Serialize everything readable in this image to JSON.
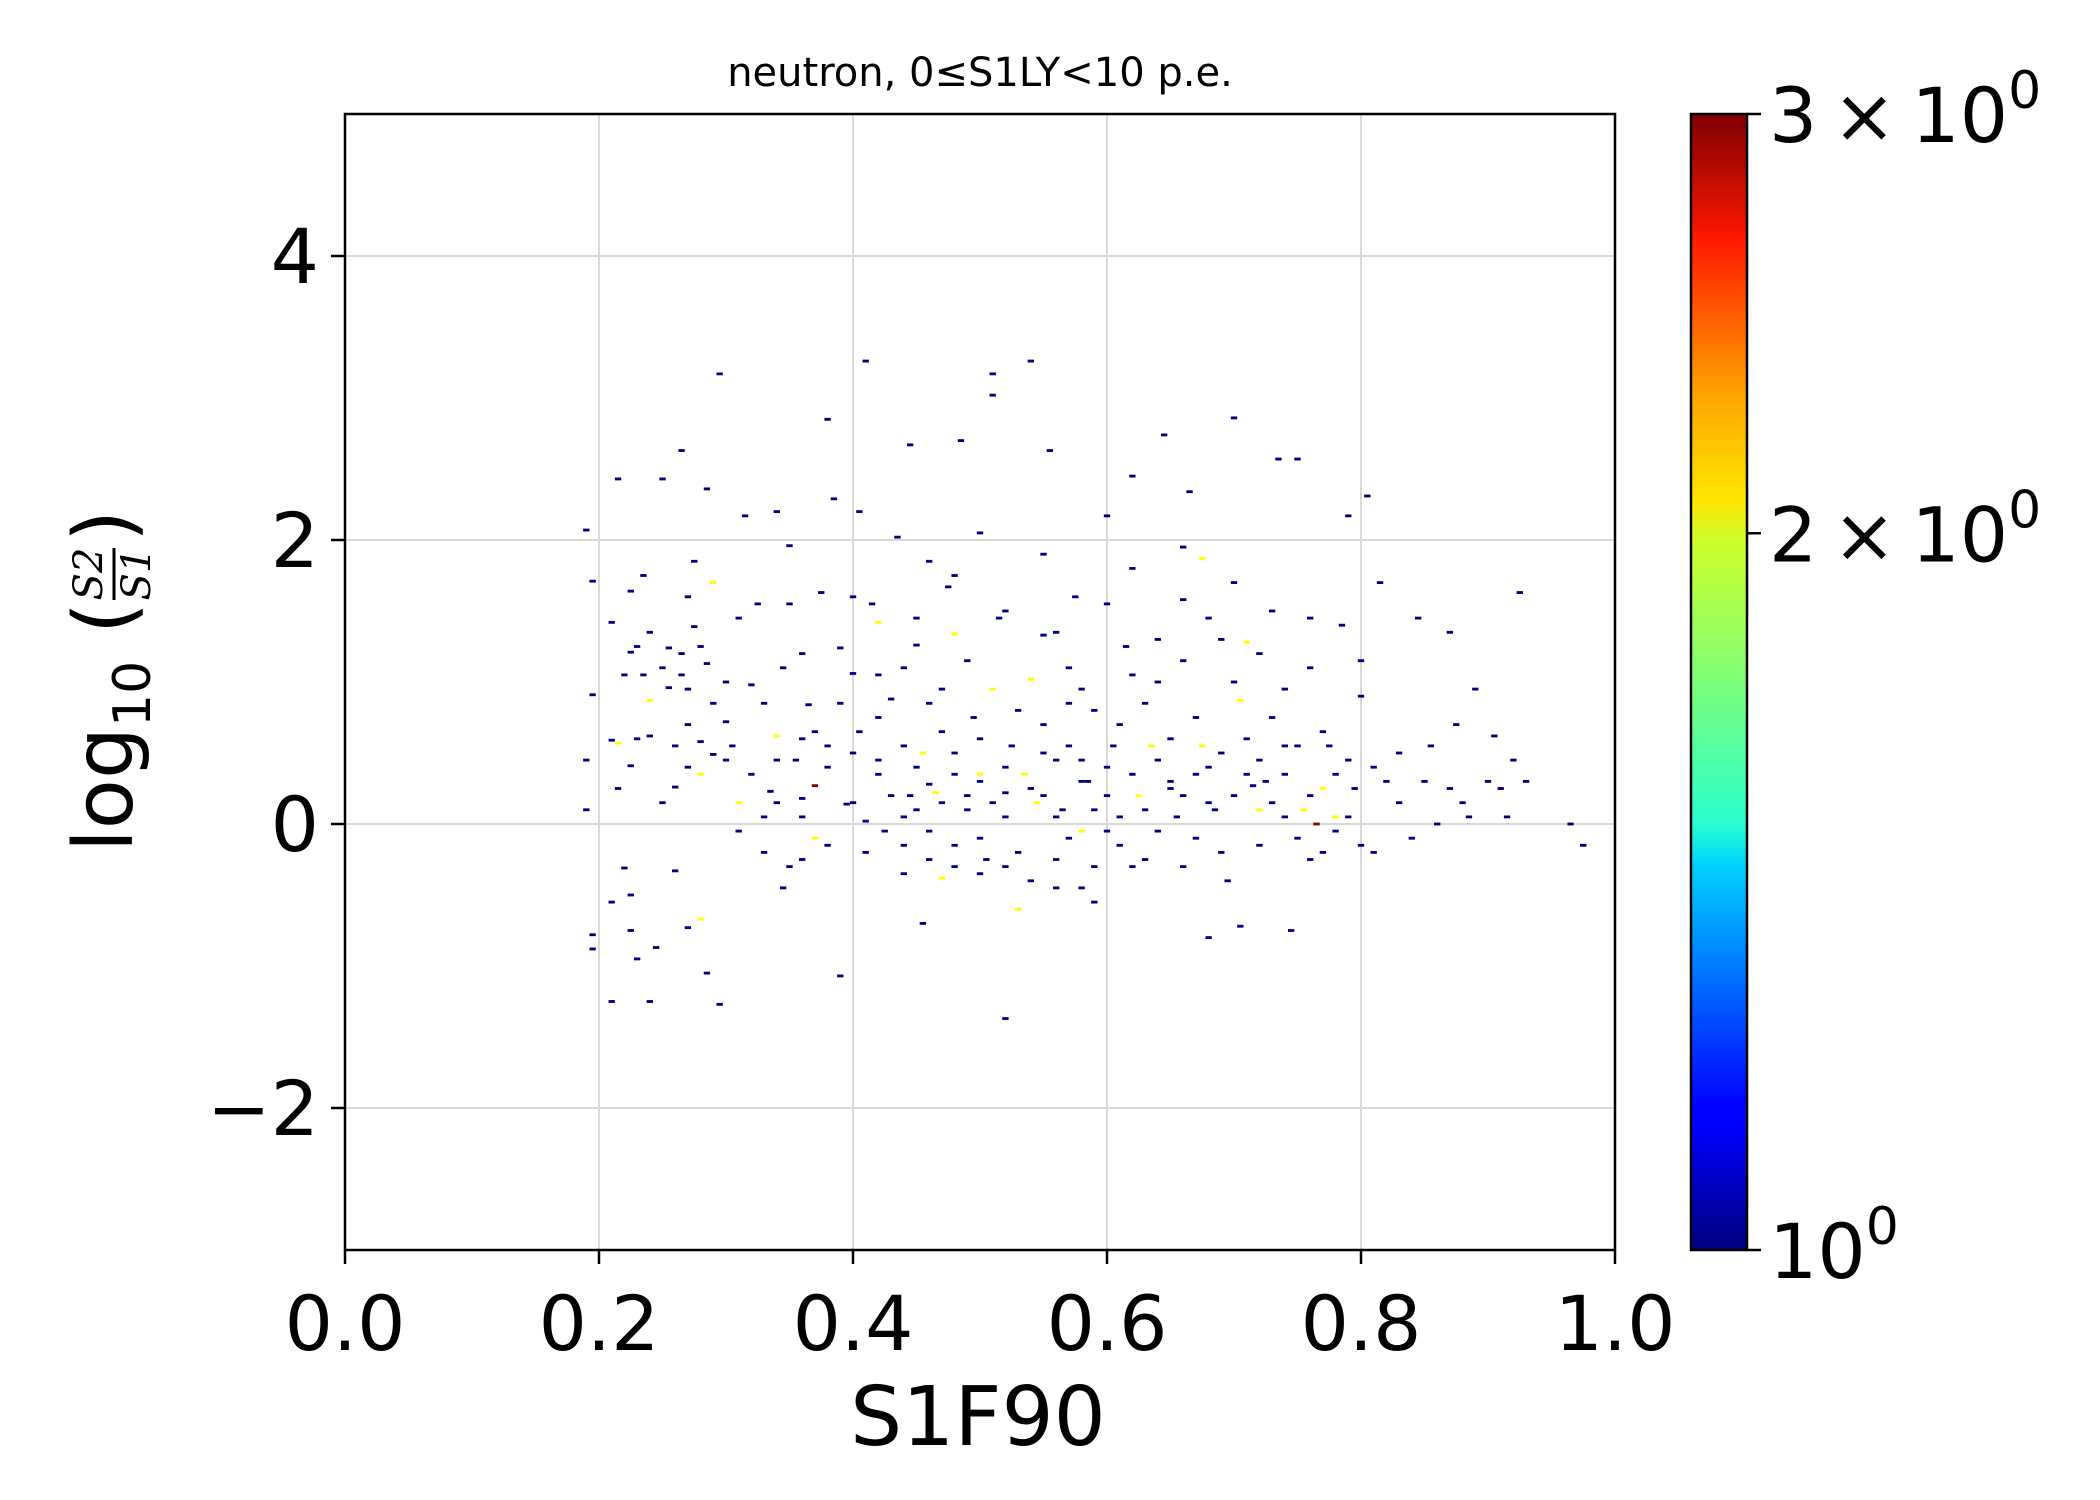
{
  "chart_data": {
    "type": "heatmap",
    "title": "neutron, 0≤S1LY<10 p.e.",
    "xlabel": "S1F90",
    "ylabel": {
      "prefix": "log",
      "subscript": "10",
      "numerator": "S2",
      "denominator": "S1"
    },
    "xlim": [
      0.0,
      1.0
    ],
    "ylim": [
      -3.0,
      5.0
    ],
    "x_ticks": [
      "0.0",
      "0.2",
      "0.4",
      "0.6",
      "0.8",
      "1.0"
    ],
    "x_tick_values": [
      0.0,
      0.2,
      0.4,
      0.6,
      0.8,
      1.0
    ],
    "y_ticks": [
      "−2",
      "0",
      "2",
      "4"
    ],
    "y_tick_values": [
      -2,
      0,
      2,
      4
    ],
    "grid": true,
    "colormap": "jet",
    "colorbar": {
      "scale": "log",
      "range": [
        1,
        3
      ],
      "ticks": [
        {
          "value": 1,
          "base": "10",
          "exp": "0"
        },
        {
          "value": 2,
          "base": "2 × 10",
          "exp": "0"
        },
        {
          "value": 3,
          "base": "3 × 10",
          "exp": "0"
        }
      ]
    },
    "colors": {
      "count_1": "#00007f",
      "count_2": "#ffff00",
      "count_3": "#7f0000",
      "grid": "#d8d8d8",
      "axes": "#000000"
    },
    "bin_size": [
      0.005,
      0.02
    ],
    "points": [
      [
        0.19,
        2.07,
        1
      ],
      [
        0.195,
        1.71,
        1
      ],
      [
        0.195,
        0.91,
        1
      ],
      [
        0.19,
        0.45,
        1
      ],
      [
        0.19,
        0.1,
        1
      ],
      [
        0.195,
        -0.78,
        1
      ],
      [
        0.195,
        -0.88,
        1
      ],
      [
        0.21,
        0.59,
        1
      ],
      [
        0.215,
        0.57,
        2
      ],
      [
        0.21,
        1.42,
        1
      ],
      [
        0.215,
        2.43,
        1
      ],
      [
        0.21,
        -0.55,
        1
      ],
      [
        0.21,
        -1.25,
        1
      ],
      [
        0.22,
        -0.31,
        1
      ],
      [
        0.225,
        1.64,
        1
      ],
      [
        0.225,
        1.21,
        1
      ],
      [
        0.225,
        0.41,
        1
      ],
      [
        0.225,
        -0.5,
        1
      ],
      [
        0.225,
        -0.75,
        1
      ],
      [
        0.23,
        -0.95,
        1
      ],
      [
        0.235,
        1.75,
        1
      ],
      [
        0.235,
        1.05,
        1
      ],
      [
        0.24,
        0.87,
        2
      ],
      [
        0.24,
        0.62,
        1
      ],
      [
        0.245,
        -0.87,
        1
      ],
      [
        0.24,
        -1.25,
        1
      ],
      [
        0.25,
        2.43,
        1
      ],
      [
        0.255,
        1.24,
        1
      ],
      [
        0.255,
        0.96,
        1
      ],
      [
        0.26,
        0.26,
        1
      ],
      [
        0.26,
        -0.33,
        1
      ],
      [
        0.265,
        2.63,
        1
      ],
      [
        0.265,
        1.2,
        1
      ],
      [
        0.265,
        1.05,
        1
      ],
      [
        0.27,
        0.7,
        1
      ],
      [
        0.27,
        -0.73,
        1
      ],
      [
        0.275,
        1.85,
        1
      ],
      [
        0.275,
        1.39,
        1
      ],
      [
        0.28,
        0.58,
        1
      ],
      [
        0.28,
        0.35,
        2
      ],
      [
        0.28,
        -0.67,
        2
      ],
      [
        0.285,
        1.13,
        1
      ],
      [
        0.285,
        2.36,
        1
      ],
      [
        0.285,
        -1.05,
        1
      ],
      [
        0.29,
        1.7,
        2
      ],
      [
        0.29,
        0.49,
        1
      ],
      [
        0.295,
        3.17,
        1
      ],
      [
        0.295,
        -1.27,
        1
      ],
      [
        0.3,
        0.72,
        1
      ],
      [
        0.305,
        0.55,
        1
      ],
      [
        0.31,
        0.15,
        2
      ],
      [
        0.315,
        2.17,
        1
      ],
      [
        0.32,
        0.98,
        1
      ],
      [
        0.325,
        1.55,
        1
      ],
      [
        0.33,
        0.05,
        1
      ],
      [
        0.335,
        0.23,
        1
      ],
      [
        0.34,
        0.62,
        2
      ],
      [
        0.34,
        2.2,
        1
      ],
      [
        0.345,
        1.1,
        1
      ],
      [
        0.345,
        -0.45,
        1
      ],
      [
        0.35,
        1.96,
        1
      ],
      [
        0.355,
        0.45,
        1
      ],
      [
        0.36,
        0.18,
        1
      ],
      [
        0.36,
        -0.25,
        1
      ],
      [
        0.365,
        0.84,
        1
      ],
      [
        0.37,
        0.27,
        3
      ],
      [
        0.37,
        -0.1,
        2
      ],
      [
        0.375,
        1.63,
        1
      ],
      [
        0.38,
        2.85,
        1
      ],
      [
        0.38,
        0.55,
        1
      ],
      [
        0.385,
        2.29,
        1
      ],
      [
        0.39,
        1.24,
        1
      ],
      [
        0.39,
        -1.07,
        1
      ],
      [
        0.395,
        0.14,
        1
      ],
      [
        0.4,
        1.06,
        1
      ],
      [
        0.405,
        2.2,
        1
      ],
      [
        0.405,
        0.65,
        1
      ],
      [
        0.41,
        0.02,
        1
      ],
      [
        0.41,
        3.26,
        1
      ],
      [
        0.415,
        1.55,
        1
      ],
      [
        0.42,
        1.42,
        2
      ],
      [
        0.42,
        0.35,
        1
      ],
      [
        0.425,
        -0.05,
        1
      ],
      [
        0.43,
        0.88,
        1
      ],
      [
        0.435,
        2.02,
        1
      ],
      [
        0.44,
        0.55,
        1
      ],
      [
        0.445,
        0.2,
        1
      ],
      [
        0.445,
        2.67,
        1
      ],
      [
        0.45,
        1.26,
        1
      ],
      [
        0.455,
        0.5,
        2
      ],
      [
        0.455,
        -0.7,
        1
      ],
      [
        0.46,
        0.28,
        1
      ],
      [
        0.465,
        0.22,
        2
      ],
      [
        0.47,
        -0.38,
        2
      ],
      [
        0.47,
        0.95,
        1
      ],
      [
        0.475,
        1.67,
        1
      ],
      [
        0.48,
        0.35,
        1
      ],
      [
        0.48,
        1.34,
        2
      ],
      [
        0.485,
        2.7,
        1
      ],
      [
        0.49,
        0.1,
        1
      ],
      [
        0.495,
        0.75,
        1
      ],
      [
        0.5,
        0.35,
        2
      ],
      [
        0.505,
        -0.25,
        1
      ],
      [
        0.51,
        0.95,
        2
      ],
      [
        0.51,
        3.17,
        1
      ],
      [
        0.51,
        3.02,
        1
      ],
      [
        0.515,
        1.45,
        1
      ],
      [
        0.52,
        -1.37,
        1
      ],
      [
        0.52,
        0.22,
        1
      ],
      [
        0.525,
        0.55,
        1
      ],
      [
        0.53,
        -0.6,
        2
      ],
      [
        0.535,
        0.35,
        2
      ],
      [
        0.54,
        1.02,
        2
      ],
      [
        0.54,
        3.26,
        1
      ],
      [
        0.545,
        0.15,
        2
      ],
      [
        0.55,
        1.33,
        1
      ],
      [
        0.555,
        2.63,
        1
      ],
      [
        0.56,
        0.45,
        1
      ],
      [
        0.56,
        -0.45,
        1
      ],
      [
        0.565,
        0.1,
        1
      ],
      [
        0.57,
        0.85,
        1
      ],
      [
        0.575,
        1.6,
        1
      ],
      [
        0.58,
        -0.05,
        2
      ],
      [
        0.585,
        0.3,
        1
      ],
      [
        0.59,
        -0.55,
        1
      ],
      [
        0.6,
        2.17,
        1
      ],
      [
        0.605,
        0.55,
        1
      ],
      [
        0.61,
        0.05,
        1
      ],
      [
        0.615,
        1.25,
        1
      ],
      [
        0.62,
        2.45,
        1
      ],
      [
        0.625,
        0.2,
        2
      ],
      [
        0.63,
        -0.25,
        1
      ],
      [
        0.635,
        0.55,
        2
      ],
      [
        0.64,
        1.0,
        1
      ],
      [
        0.645,
        2.74,
        1
      ],
      [
        0.65,
        0.25,
        1
      ],
      [
        0.655,
        0.05,
        1
      ],
      [
        0.66,
        1.58,
        1
      ],
      [
        0.665,
        2.34,
        1
      ],
      [
        0.67,
        -0.1,
        1
      ],
      [
        0.675,
        1.87,
        2
      ],
      [
        0.675,
        0.55,
        2
      ],
      [
        0.68,
        -0.8,
        1
      ],
      [
        0.685,
        0.1,
        1
      ],
      [
        0.69,
        1.3,
        1
      ],
      [
        0.695,
        -0.4,
        1
      ],
      [
        0.7,
        2.86,
        1
      ],
      [
        0.705,
        0.87,
        2
      ],
      [
        0.705,
        -0.72,
        1
      ],
      [
        0.71,
        1.28,
        2
      ],
      [
        0.715,
        0.27,
        1
      ],
      [
        0.72,
        0.1,
        2
      ],
      [
        0.725,
        0.3,
        1
      ],
      [
        0.73,
        1.5,
        1
      ],
      [
        0.735,
        2.57,
        1
      ],
      [
        0.74,
        0.55,
        1
      ],
      [
        0.745,
        -0.75,
        1
      ],
      [
        0.75,
        2.57,
        1
      ],
      [
        0.755,
        0.1,
        2
      ],
      [
        0.76,
        1.1,
        1
      ],
      [
        0.765,
        0.0,
        3
      ],
      [
        0.77,
        0.25,
        2
      ],
      [
        0.775,
        0.55,
        1
      ],
      [
        0.78,
        0.05,
        2
      ],
      [
        0.785,
        1.4,
        1
      ],
      [
        0.79,
        2.17,
        1
      ],
      [
        0.795,
        0.25,
        1
      ],
      [
        0.8,
        0.9,
        1
      ],
      [
        0.805,
        2.31,
        1
      ],
      [
        0.81,
        -0.2,
        1
      ],
      [
        0.815,
        1.7,
        1
      ],
      [
        0.82,
        0.3,
        1
      ],
      [
        0.83,
        0.15,
        1
      ],
      [
        0.84,
        -0.1,
        1
      ],
      [
        0.845,
        1.45,
        1
      ],
      [
        0.855,
        0.55,
        1
      ],
      [
        0.86,
        0.0,
        1
      ],
      [
        0.87,
        1.35,
        1
      ],
      [
        0.875,
        0.7,
        1
      ],
      [
        0.88,
        0.15,
        1
      ],
      [
        0.885,
        0.05,
        1
      ],
      [
        0.89,
        0.95,
        1
      ],
      [
        0.9,
        0.3,
        1
      ],
      [
        0.905,
        0.62,
        1
      ],
      [
        0.91,
        0.25,
        1
      ],
      [
        0.915,
        0.05,
        1
      ],
      [
        0.92,
        0.45,
        1
      ],
      [
        0.925,
        1.63,
        1
      ],
      [
        0.93,
        0.3,
        1
      ],
      [
        0.965,
        0.0,
        1
      ],
      [
        0.975,
        -0.15,
        1
      ],
      [
        0.44,
        0.05,
        1
      ],
      [
        0.44,
        -0.15,
        1
      ],
      [
        0.45,
        0.1,
        1
      ],
      [
        0.46,
        -0.05,
        1
      ],
      [
        0.47,
        0.15,
        1
      ],
      [
        0.48,
        -0.15,
        1
      ],
      [
        0.49,
        0.2,
        1
      ],
      [
        0.5,
        -0.1,
        1
      ],
      [
        0.51,
        0.15,
        1
      ],
      [
        0.52,
        0.05,
        1
      ],
      [
        0.53,
        -0.2,
        1
      ],
      [
        0.54,
        0.25,
        1
      ],
      [
        0.55,
        0.2,
        1
      ],
      [
        0.56,
        0.05,
        1
      ],
      [
        0.57,
        -0.1,
        1
      ],
      [
        0.58,
        0.3,
        1
      ],
      [
        0.59,
        0.1,
        1
      ],
      [
        0.6,
        0.2,
        1
      ],
      [
        0.61,
        -0.15,
        1
      ],
      [
        0.62,
        0.35,
        1
      ],
      [
        0.63,
        0.1,
        1
      ],
      [
        0.64,
        -0.05,
        1
      ],
      [
        0.65,
        0.3,
        1
      ],
      [
        0.66,
        0.2,
        1
      ],
      [
        0.67,
        0.35,
        1
      ],
      [
        0.68,
        0.15,
        1
      ],
      [
        0.69,
        -0.2,
        1
      ],
      [
        0.7,
        0.2,
        1
      ],
      [
        0.71,
        0.35,
        1
      ],
      [
        0.72,
        -0.15,
        1
      ],
      [
        0.73,
        0.15,
        1
      ],
      [
        0.74,
        0.35,
        1
      ],
      [
        0.75,
        -0.1,
        1
      ],
      [
        0.76,
        0.2,
        1
      ],
      [
        0.77,
        -0.2,
        1
      ],
      [
        0.78,
        0.35,
        1
      ],
      [
        0.79,
        0.05,
        1
      ],
      [
        0.8,
        -0.15,
        1
      ],
      [
        0.5,
        0.3,
        1
      ],
      [
        0.52,
        0.4,
        1
      ],
      [
        0.55,
        0.5,
        1
      ],
      [
        0.58,
        0.45,
        1
      ],
      [
        0.6,
        0.4,
        1
      ],
      [
        0.45,
        0.4,
        1
      ],
      [
        0.48,
        0.5,
        1
      ],
      [
        0.43,
        0.2,
        1
      ],
      [
        0.41,
        -0.2,
        1
      ],
      [
        0.4,
        0.15,
        1
      ],
      [
        0.38,
        -0.15,
        1
      ],
      [
        0.36,
        0.05,
        1
      ],
      [
        0.35,
        -0.3,
        1
      ],
      [
        0.34,
        0.15,
        1
      ],
      [
        0.33,
        -0.2,
        1
      ],
      [
        0.32,
        0.35,
        1
      ],
      [
        0.31,
        -0.05,
        1
      ],
      [
        0.3,
        0.45,
        1
      ],
      [
        0.29,
        0.85,
        1
      ],
      [
        0.28,
        1.25,
        1
      ],
      [
        0.27,
        0.95,
        1
      ],
      [
        0.26,
        0.55,
        1
      ],
      [
        0.25,
        0.15,
        1
      ],
      [
        0.24,
        1.35,
        1
      ],
      [
        0.23,
        0.6,
        1
      ],
      [
        0.22,
        1.05,
        1
      ],
      [
        0.215,
        0.25,
        1
      ],
      [
        0.25,
        1.1,
        1
      ],
      [
        0.27,
        0.4,
        1
      ],
      [
        0.3,
        1.0,
        1
      ],
      [
        0.33,
        0.85,
        1
      ],
      [
        0.36,
        1.2,
        1
      ],
      [
        0.37,
        0.65,
        1
      ],
      [
        0.39,
        0.85,
        1
      ],
      [
        0.42,
        0.75,
        1
      ],
      [
        0.44,
        1.1,
        1
      ],
      [
        0.46,
        0.85,
        1
      ],
      [
        0.47,
        0.65,
        1
      ],
      [
        0.49,
        1.15,
        1
      ],
      [
        0.5,
        0.6,
        1
      ],
      [
        0.53,
        0.8,
        1
      ],
      [
        0.55,
        0.7,
        1
      ],
      [
        0.57,
        1.1,
        1
      ],
      [
        0.59,
        0.8,
        1
      ],
      [
        0.61,
        0.7,
        1
      ],
      [
        0.63,
        0.85,
        1
      ],
      [
        0.65,
        0.6,
        1
      ],
      [
        0.67,
        0.75,
        1
      ],
      [
        0.69,
        0.5,
        1
      ],
      [
        0.71,
        0.6,
        1
      ],
      [
        0.73,
        0.75,
        1
      ],
      [
        0.75,
        0.55,
        1
      ],
      [
        0.77,
        0.65,
        1
      ],
      [
        0.79,
        0.45,
        1
      ],
      [
        0.81,
        0.4,
        1
      ],
      [
        0.83,
        0.5,
        1
      ],
      [
        0.85,
        0.3,
        1
      ],
      [
        0.87,
        0.25,
        1
      ],
      [
        0.57,
        0.55,
        1
      ],
      [
        0.59,
        -0.3,
        1
      ],
      [
        0.6,
        -0.05,
        1
      ],
      [
        0.62,
        -0.3,
        1
      ],
      [
        0.64,
        0.45,
        1
      ],
      [
        0.66,
        -0.3,
        1
      ],
      [
        0.68,
        0.4,
        1
      ],
      [
        0.72,
        0.45,
        1
      ],
      [
        0.74,
        0.05,
        1
      ],
      [
        0.76,
        -0.25,
        1
      ],
      [
        0.78,
        -0.05,
        1
      ],
      [
        0.42,
        0.45,
        1
      ],
      [
        0.4,
        0.5,
        1
      ],
      [
        0.38,
        0.4,
        1
      ],
      [
        0.36,
        0.6,
        1
      ],
      [
        0.34,
        0.45,
        1
      ],
      [
        0.44,
        -0.35,
        1
      ],
      [
        0.46,
        -0.25,
        1
      ],
      [
        0.48,
        -0.3,
        1
      ],
      [
        0.5,
        -0.35,
        1
      ],
      [
        0.52,
        -0.3,
        1
      ],
      [
        0.54,
        -0.4,
        1
      ],
      [
        0.56,
        -0.25,
        1
      ],
      [
        0.58,
        -0.45,
        1
      ],
      [
        0.42,
        1.05,
        1
      ],
      [
        0.45,
        1.45,
        1
      ],
      [
        0.48,
        1.75,
        1
      ],
      [
        0.52,
        1.5,
        1
      ],
      [
        0.56,
        1.35,
        1
      ],
      [
        0.6,
        1.55,
        1
      ],
      [
        0.64,
        1.3,
        1
      ],
      [
        0.68,
        1.45,
        1
      ],
      [
        0.72,
        1.2,
        1
      ],
      [
        0.76,
        1.45,
        1
      ],
      [
        0.8,
        1.15,
        1
      ],
      [
        0.4,
        1.6,
        1
      ],
      [
        0.35,
        1.55,
        1
      ],
      [
        0.31,
        1.45,
        1
      ],
      [
        0.27,
        1.6,
        1
      ],
      [
        0.23,
        1.25,
        1
      ],
      [
        0.55,
        1.9,
        1
      ],
      [
        0.5,
        2.05,
        1
      ],
      [
        0.46,
        1.85,
        1
      ],
      [
        0.62,
        1.8,
        1
      ],
      [
        0.66,
        1.95,
        1
      ],
      [
        0.7,
        1.7,
        1
      ],
      [
        0.58,
        0.95,
        1
      ],
      [
        0.62,
        1.05,
        1
      ],
      [
        0.66,
        1.15,
        1
      ],
      [
        0.7,
        1.0,
        1
      ],
      [
        0.74,
        0.95,
        1
      ]
    ]
  }
}
